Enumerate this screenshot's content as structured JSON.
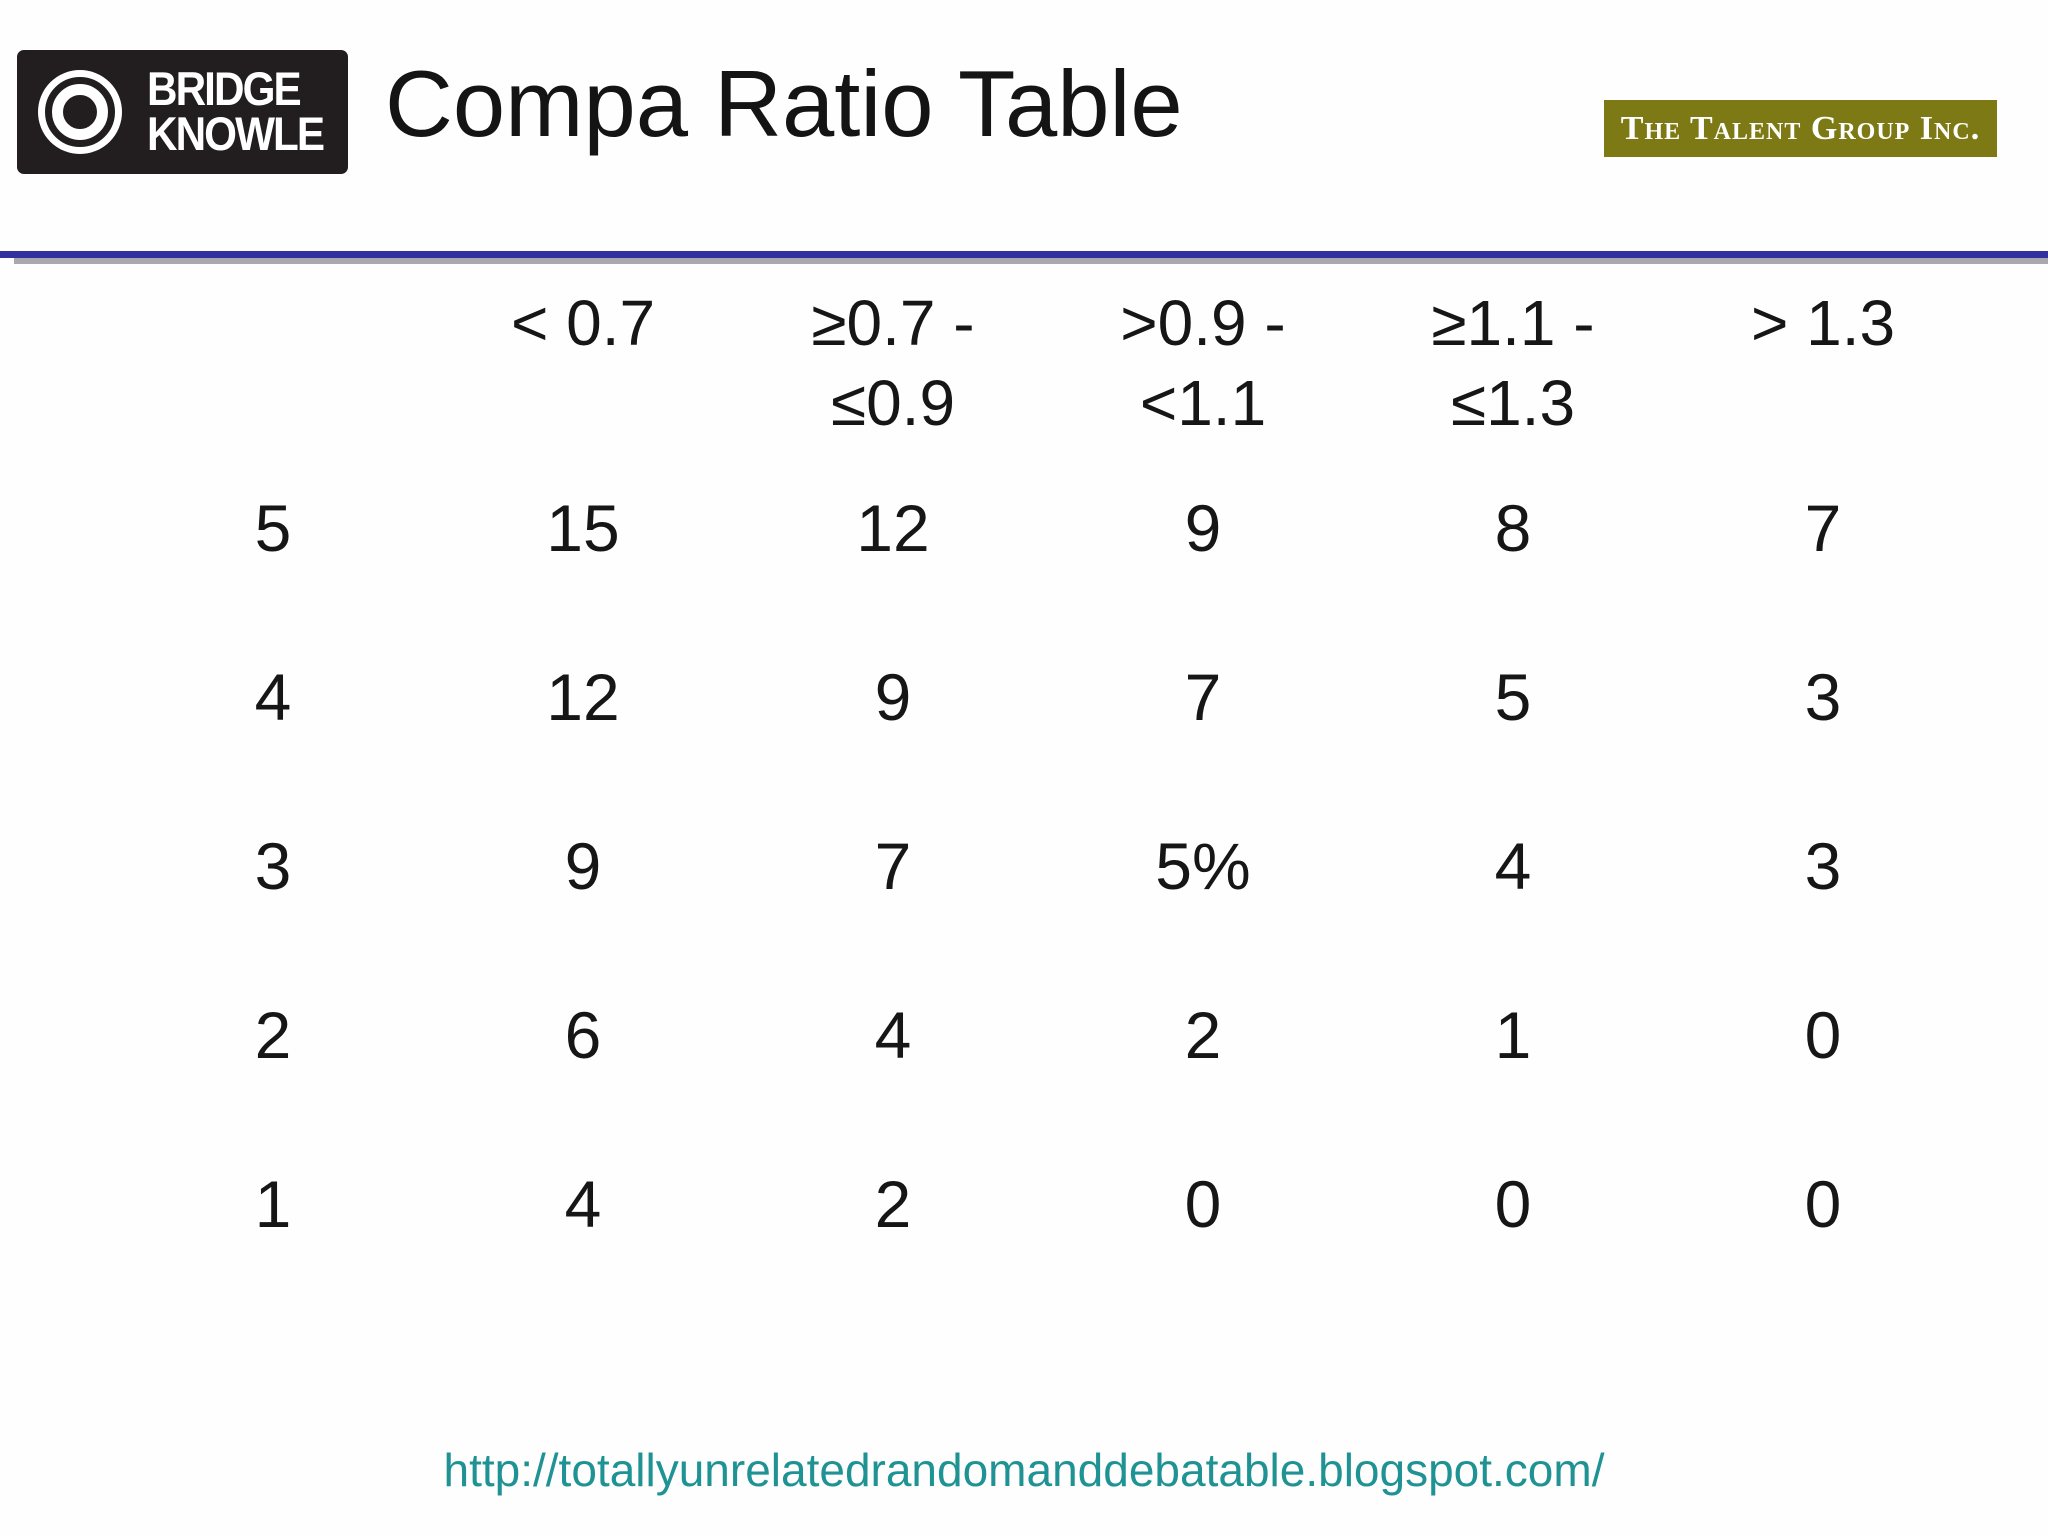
{
  "header": {
    "title": "Compa Ratio Table",
    "bridge_knowle_logo": {
      "line1": "BRIDGE",
      "line2": "KNOWLE",
      "bg_color": "#221e1f"
    },
    "talent_group_badge": {
      "text": "The Talent Group Inc.",
      "bg_color": "#7d7a15"
    },
    "divider_color": "#32329e",
    "divider_shadow_color": "#a8a8b0"
  },
  "table": {
    "corner_label": "",
    "col_headers": [
      "< 0.7",
      "≥0.7 -\n≤0.9",
      ">0.9 -\n<1.1",
      "≥1.1 -\n≤1.3",
      "> 1.3"
    ],
    "rows": [
      {
        "label": "5",
        "values": [
          "15",
          "12",
          "9",
          "8",
          "7"
        ]
      },
      {
        "label": "4",
        "values": [
          "12",
          "9",
          "7",
          "5",
          "3"
        ]
      },
      {
        "label": "3",
        "values": [
          "9",
          "7",
          "5%",
          "4",
          "3"
        ]
      },
      {
        "label": "2",
        "values": [
          "6",
          "4",
          "2",
          "1",
          "0"
        ]
      },
      {
        "label": "1",
        "values": [
          "4",
          "2",
          "0",
          "0",
          "0"
        ]
      }
    ]
  },
  "footer": {
    "url": "http://totallyunrelatedrandomanddebatable.blogspot.com/",
    "link_color": "#1f9394"
  }
}
